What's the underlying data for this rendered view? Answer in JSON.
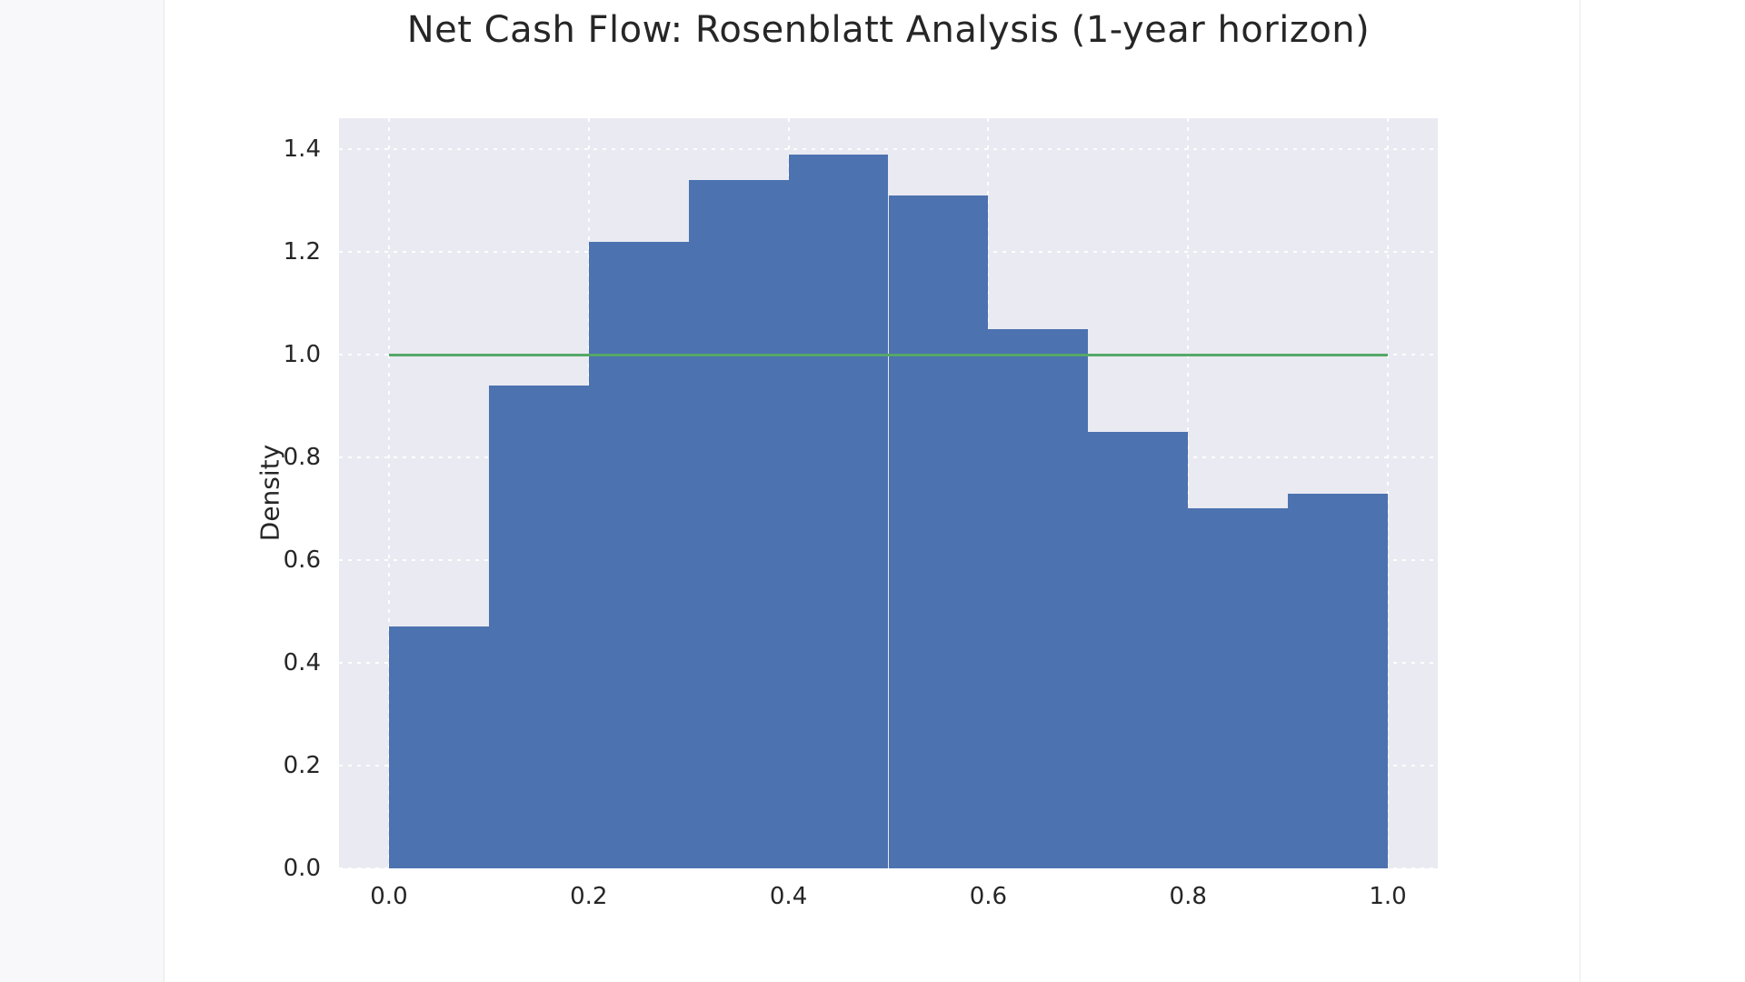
{
  "chart_data": {
    "type": "bar",
    "subtype": "histogram-density",
    "title": "Net Cash Flow: Rosenblatt Analysis (1-year horizon)",
    "xlabel": "",
    "ylabel": "Density",
    "bin_edges": [
      0.0,
      0.1,
      0.2,
      0.3,
      0.4,
      0.5,
      0.6,
      0.7,
      0.8,
      0.9,
      1.0
    ],
    "densities": [
      0.47,
      0.94,
      1.22,
      1.34,
      1.39,
      1.31,
      1.05,
      0.85,
      0.7,
      0.73
    ],
    "reference_line": {
      "y": 1.0,
      "x_start": 0.0,
      "x_end": 1.0,
      "color": "#55A868"
    },
    "x_ticks": [
      0.0,
      0.2,
      0.4,
      0.6,
      0.8,
      1.0
    ],
    "x_tick_labels": [
      "0.0",
      "0.2",
      "0.4",
      "0.6",
      "0.8",
      "1.0"
    ],
    "y_ticks": [
      0.0,
      0.2,
      0.4,
      0.6,
      0.8,
      1.0,
      1.2,
      1.4
    ],
    "y_tick_labels": [
      "0.0",
      "0.2",
      "0.4",
      "0.6",
      "0.8",
      "1.0",
      "1.2",
      "1.4"
    ],
    "xlim": [
      -0.05,
      1.05
    ],
    "ylim": [
      0.0,
      1.46
    ],
    "grid": "dotted-white",
    "legend": "none",
    "colors": {
      "bar": "#4C72B0",
      "plot_background": "#EAEAF2",
      "figure_background": "#ffffff",
      "text": "#262626"
    }
  }
}
